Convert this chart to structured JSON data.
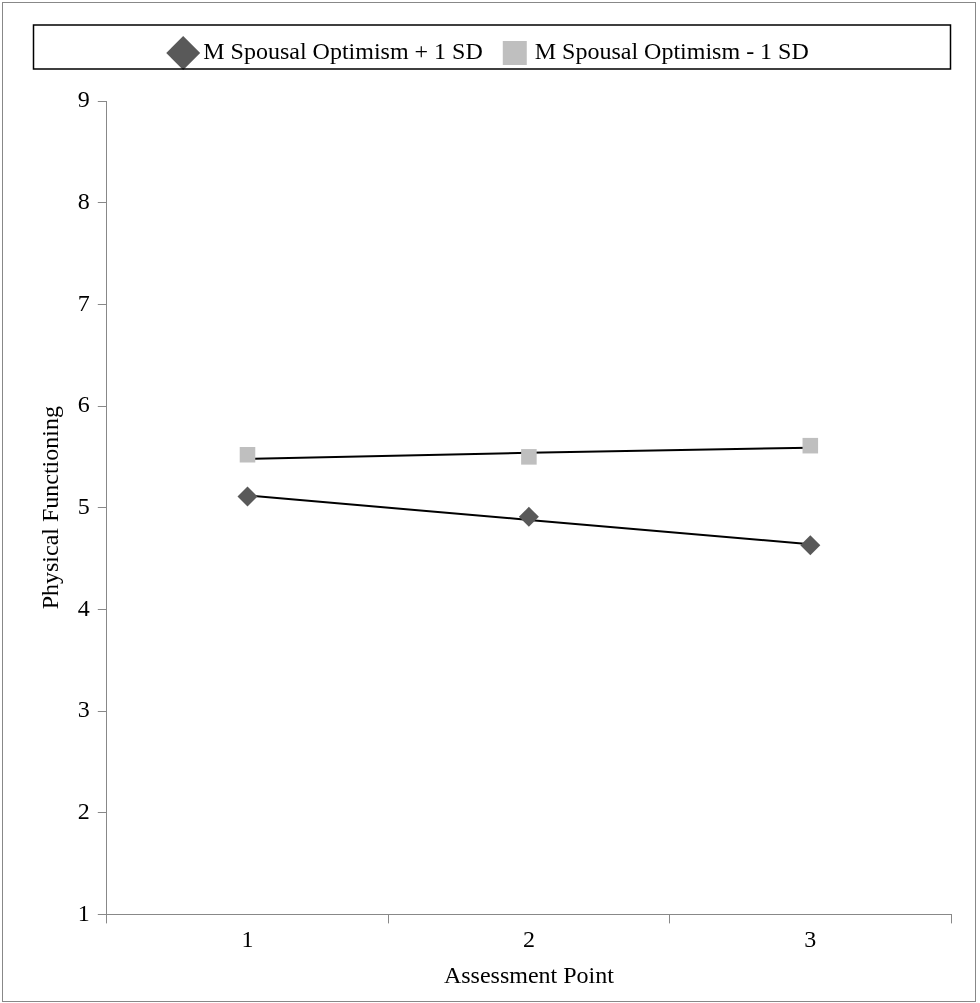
{
  "chart_data": {
    "type": "line",
    "xlabel": "Assessment Point",
    "ylabel": "Physical Functioning",
    "categories": [
      "1",
      "2",
      "3"
    ],
    "series": [
      {
        "name": "M Spousal Optimism + 1 SD",
        "type": "scatter",
        "marker": "diamond",
        "color": "#595959",
        "values": [
          5.11,
          4.91,
          4.63
        ]
      },
      {
        "name": "M Spousal Optimism - 1 SD",
        "type": "scatter",
        "marker": "square",
        "color": "#bfbfbf",
        "values": [
          5.52,
          5.5,
          5.61
        ]
      },
      {
        "type": "line",
        "marker": "none",
        "color": "#000000",
        "values": [
          5.12,
          4.88,
          4.64
        ]
      },
      {
        "type": "line",
        "marker": "none",
        "color": "#000000",
        "values": [
          5.48,
          5.54,
          5.59
        ]
      }
    ],
    "ylim": [
      1,
      9
    ],
    "yticks": [
      1,
      2,
      3,
      4,
      5,
      6,
      7,
      8,
      9
    ],
    "grid": false,
    "legend": "top"
  }
}
